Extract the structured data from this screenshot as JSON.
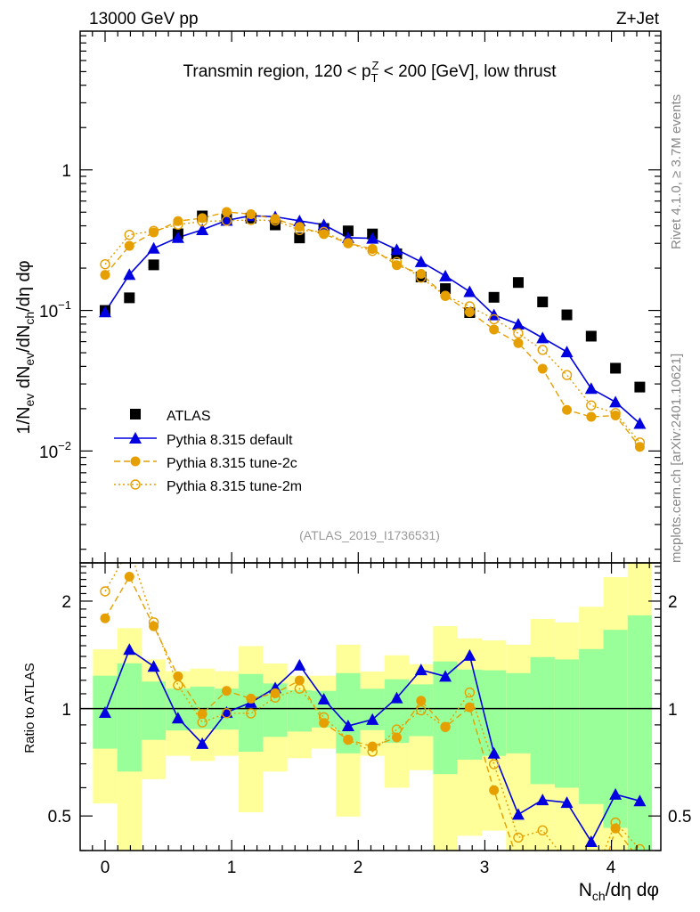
{
  "header": {
    "left": "13000 GeV pp",
    "right": "Z+Jet"
  },
  "side": {
    "rivet": "Rivet 4.1.0, ≥ 3.7M events",
    "mcplots": "mcplots.cern.ch [arXiv:2401.10621]"
  },
  "analysis_id": "(ATLAS_2019_I1736531)",
  "colors": {
    "atlas": "#000000",
    "default": "#0000e0",
    "tune2c": "#e69f00",
    "tune2m": "#e69f00",
    "band_inner": "#99ff99",
    "band_outer": "#ffff99"
  },
  "chart_data": {
    "type": "scatter",
    "title_parts": {
      "pre": "Transmin region, 120 < p",
      "sub": "T",
      "sup": "Z",
      "post": " < 200 [GeV], low thrust"
    },
    "ylabel": "1/N_ev dN_ev/dN_ch/dη dφ",
    "ylabel_parts": {
      "a": "1/N",
      "a_sub": "ev",
      "b": " dN",
      "b_sub": "ev",
      "c": "/dN",
      "c_sub": "ch",
      "d": "/dη dφ"
    },
    "xlabel_parts": {
      "a": "N",
      "a_sub": "ch",
      "b": "/dη dφ"
    },
    "ratio_ylabel": "Ratio to ATLAS",
    "xlim": [
      -0.197,
      4.39
    ],
    "ylim": [
      0.0016,
      9.7
    ],
    "ratio_ylim": [
      0.4,
      2.56
    ],
    "yscale": "log",
    "x_ticks": [
      "0",
      "1",
      "2",
      "3",
      "4"
    ],
    "y_ticks": {
      "one": "1",
      "m1_base": "10",
      "m1_exp": "−1",
      "m2_base": "10",
      "m2_exp": "−2"
    },
    "ratio_ticks": [
      "0.5",
      "1",
      "2"
    ],
    "x": [
      0,
      0.192,
      0.384,
      0.576,
      0.768,
      0.96,
      1.152,
      1.344,
      1.536,
      1.728,
      1.92,
      2.112,
      2.304,
      2.496,
      2.688,
      2.88,
      3.072,
      3.264,
      3.456,
      3.648,
      3.84,
      4.032,
      4.224
    ],
    "bin_width": 0.192,
    "legend_position": "middle-left",
    "series": [
      {
        "name": "ATLAS",
        "marker": "square",
        "values": [
          0.1,
          0.123,
          0.211,
          0.351,
          0.47,
          0.448,
          0.454,
          0.406,
          0.328,
          0.383,
          0.368,
          0.35,
          0.253,
          0.173,
          0.143,
          0.0965,
          0.124,
          0.158,
          0.115,
          0.093,
          0.0656,
          0.0388,
          0.0285
        ]
      },
      {
        "name": "Pythia 8.315 default",
        "marker": "triangle",
        "line": "solid",
        "values": [
          0.0975,
          0.18,
          0.277,
          0.33,
          0.375,
          0.437,
          0.472,
          0.464,
          0.434,
          0.407,
          0.329,
          0.326,
          0.271,
          0.222,
          0.176,
          0.136,
          0.0929,
          0.0798,
          0.0638,
          0.0507,
          0.0278,
          0.0223,
          0.0157
        ]
      },
      {
        "name": "Pythia 8.315 tune-2c",
        "marker": "circle",
        "line": "dashed",
        "values": [
          0.179,
          0.288,
          0.359,
          0.432,
          0.454,
          0.502,
          0.484,
          0.448,
          0.393,
          0.349,
          0.301,
          0.274,
          0.21,
          0.182,
          0.127,
          0.0973,
          0.0732,
          0.0586,
          0.0385,
          0.0196,
          0.0175,
          0.0179,
          0.0107
        ]
      },
      {
        "name": "Pythia 8.315 tune-2m",
        "marker": "open-circle",
        "line": "dotted",
        "values": [
          0.213,
          0.345,
          0.368,
          0.408,
          0.43,
          0.435,
          0.44,
          0.436,
          0.373,
          0.362,
          0.301,
          0.265,
          0.221,
          0.171,
          0.127,
          0.107,
          0.0866,
          0.0687,
          0.0524,
          0.0347,
          0.0211,
          0.0186,
          0.0115
        ]
      }
    ],
    "uncertainty_band": {
      "inner_hi": [
        1.236,
        1.339,
        1.19,
        1.137,
        1.152,
        1.137,
        1.25,
        1.176,
        1.126,
        1.121,
        1.257,
        1.136,
        1.208,
        1.169,
        1.355,
        1.286,
        1.28,
        1.257,
        1.394,
        1.373,
        1.468,
        1.662,
        1.825
      ],
      "inner_lo": [
        0.772,
        0.666,
        0.817,
        0.868,
        0.876,
        0.873,
        0.757,
        0.833,
        0.862,
        0.885,
        0.749,
        0.87,
        0.801,
        0.837,
        0.655,
        0.719,
        0.737,
        0.749,
        0.614,
        0.6,
        0.54,
        0.463,
        0.35
      ],
      "outer_hi": [
        1.465,
        1.68,
        1.373,
        1.272,
        1.294,
        1.272,
        1.496,
        1.337,
        1.236,
        1.236,
        1.51,
        1.27,
        1.41,
        1.331,
        1.703,
        1.573,
        1.552,
        1.51,
        1.783,
        1.742,
        1.928,
        2.335,
        2.6
      ],
      "outer_lo": [
        0.542,
        0.35,
        0.634,
        0.737,
        0.713,
        0.737,
        0.512,
        0.666,
        0.726,
        0.772,
        0.498,
        0.737,
        0.6,
        0.672,
        0.35,
        0.44,
        0.455,
        0.35,
        0.35,
        0.35,
        0.35,
        0.35,
        0.35
      ]
    }
  }
}
